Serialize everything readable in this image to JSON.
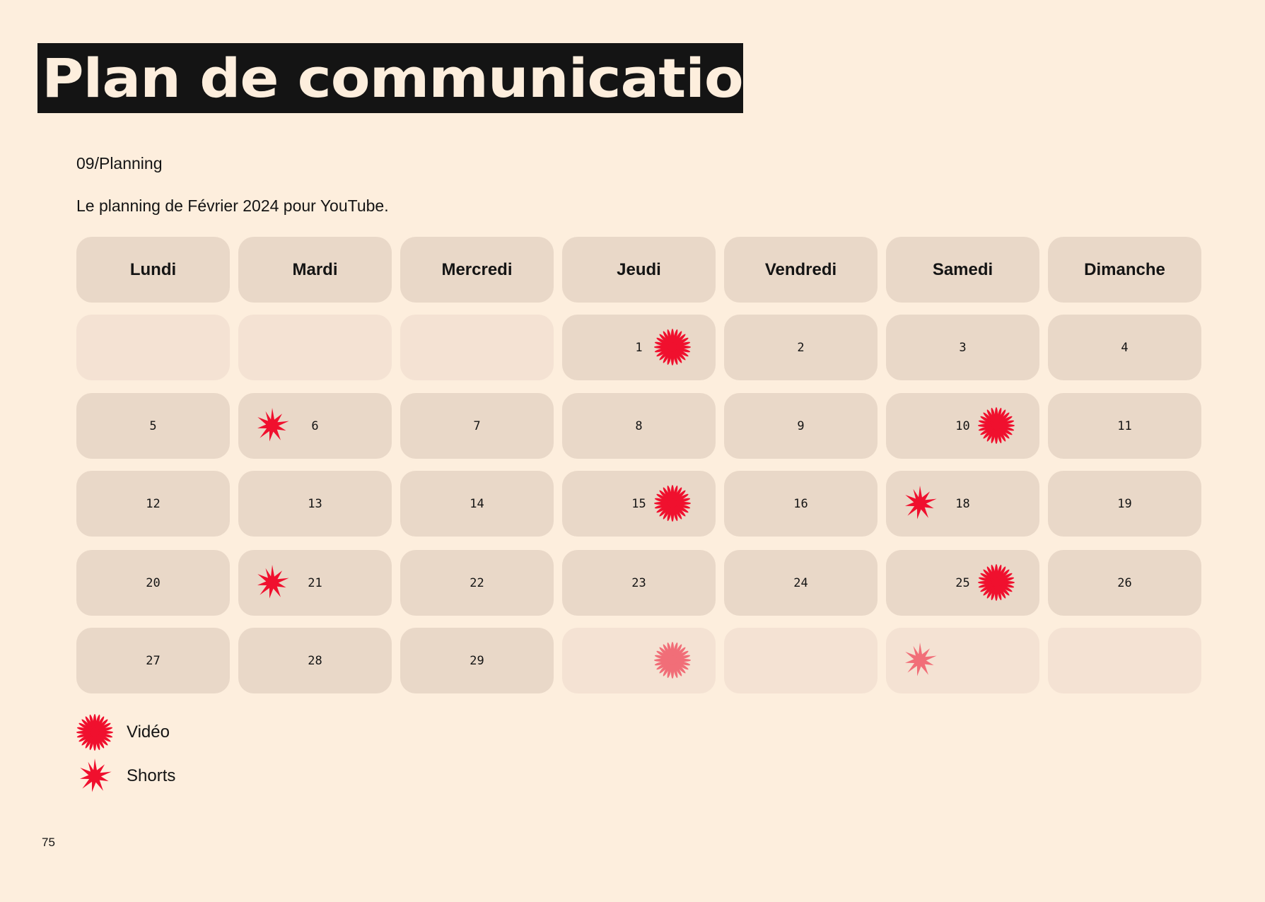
{
  "header": {
    "title": "Plan de communication",
    "subtitle": "09/Planning",
    "description": "Le planning de Février 2024 pour YouTube."
  },
  "colors": {
    "background": "#fdeedd",
    "title_band": "#141414",
    "cell": "#e9d8c8",
    "cell_empty": "#f4e2d3",
    "accent": "#f0102e"
  },
  "calendar": {
    "days": [
      "Lundi",
      "Mardi",
      "Mercredi",
      "Jeudi",
      "Vendredi",
      "Samedi",
      "Dimanche"
    ],
    "weeks": [
      [
        {
          "day": "",
          "empty": true
        },
        {
          "day": "",
          "empty": true
        },
        {
          "day": "",
          "empty": true
        },
        {
          "day": "1",
          "marker": "video-icon",
          "pos": "right"
        },
        {
          "day": "2"
        },
        {
          "day": "3"
        },
        {
          "day": "4"
        }
      ],
      [
        {
          "day": "5"
        },
        {
          "day": "6",
          "marker": "shorts-icon",
          "pos": "left"
        },
        {
          "day": "7"
        },
        {
          "day": "8"
        },
        {
          "day": "9"
        },
        {
          "day": "10",
          "marker": "video-icon",
          "pos": "right"
        },
        {
          "day": "11"
        }
      ],
      [
        {
          "day": "12"
        },
        {
          "day": "13"
        },
        {
          "day": "14"
        },
        {
          "day": "15",
          "marker": "video-icon",
          "pos": "right"
        },
        {
          "day": "16"
        },
        {
          "day": "18",
          "marker": "shorts-icon",
          "pos": "left"
        },
        {
          "day": "19"
        }
      ],
      [
        {
          "day": "20"
        },
        {
          "day": "21",
          "marker": "shorts-icon",
          "pos": "left"
        },
        {
          "day": "22"
        },
        {
          "day": "23"
        },
        {
          "day": "24"
        },
        {
          "day": "25",
          "marker": "video-icon",
          "pos": "right"
        },
        {
          "day": "26"
        }
      ],
      [
        {
          "day": "27"
        },
        {
          "day": "28"
        },
        {
          "day": "29"
        },
        {
          "day": "",
          "empty": true,
          "marker": "video-icon",
          "pos": "right",
          "faded": true
        },
        {
          "day": "",
          "empty": true
        },
        {
          "day": "",
          "empty": true,
          "marker": "shorts-icon",
          "pos": "left",
          "faded": true
        },
        {
          "day": "",
          "empty": true
        }
      ]
    ]
  },
  "legend": [
    {
      "icon": "video-icon",
      "label": "Vidéo"
    },
    {
      "icon": "shorts-icon",
      "label": "Shorts"
    }
  ],
  "page_number": "75"
}
